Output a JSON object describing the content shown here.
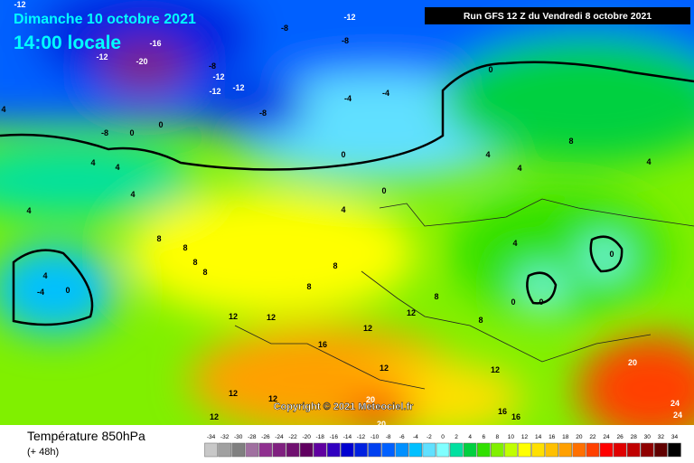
{
  "header": {
    "title": "Dimanche 10 octobre 2021",
    "subtitle": "14:00 locale",
    "run": "Run GFS 12 Z du Vendredi 8 octobre 2021"
  },
  "map": {
    "copyright": "Copyright © 2021 Meteociel.fr",
    "contour_labels": [
      -12,
      -12,
      -8,
      -16,
      -8,
      -12,
      -20,
      -8,
      0,
      -12,
      -12,
      -12,
      -4,
      -4,
      4,
      -8,
      -8,
      0,
      0,
      4,
      4,
      0,
      4,
      4,
      8,
      8,
      8,
      8,
      4,
      -4,
      0,
      8,
      4,
      0,
      8,
      12,
      12,
      16,
      12,
      12,
      12,
      12,
      12,
      20,
      20,
      16,
      16,
      8,
      4,
      0,
      0,
      8,
      12,
      20,
      24,
      24,
      4,
      4,
      4,
      0,
      8,
      12
    ]
  },
  "legend": {
    "title": "Température 850hPa",
    "lead": "(+ 48h)",
    "ticks": [
      -34,
      -32,
      -30,
      -28,
      -26,
      -24,
      -22,
      -20,
      -18,
      -16,
      -14,
      -12,
      -10,
      -8,
      -6,
      -4,
      -2,
      0,
      2,
      4,
      6,
      8,
      10,
      12,
      14,
      16,
      18,
      20,
      22,
      24,
      26,
      28,
      30,
      32,
      34
    ],
    "colors": [
      "#c8c8c8",
      "#a0a0a0",
      "#808080",
      "#a070a0",
      "#903090",
      "#802080",
      "#701070",
      "#600060",
      "#6000a0",
      "#3000c0",
      "#0000d0",
      "#0020e0",
      "#0040f0",
      "#0060ff",
      "#0090ff",
      "#00c0ff",
      "#60e0ff",
      "#80ffff",
      "#00e0a0",
      "#00d040",
      "#30e000",
      "#80f000",
      "#c0ff00",
      "#ffff00",
      "#ffe000",
      "#ffc000",
      "#ffa000",
      "#ff7000",
      "#ff4000",
      "#ff0000",
      "#e00000",
      "#c00000",
      "#900000",
      "#600000",
      "#000000"
    ]
  }
}
